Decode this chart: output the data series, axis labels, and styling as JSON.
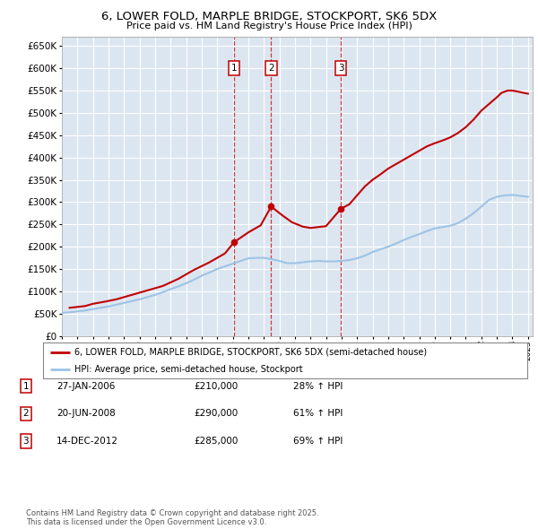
{
  "title": "6, LOWER FOLD, MARPLE BRIDGE, STOCKPORT, SK6 5DX",
  "subtitle": "Price paid vs. HM Land Registry's House Price Index (HPI)",
  "legend_label_red": "6, LOWER FOLD, MARPLE BRIDGE, STOCKPORT, SK6 5DX (semi-detached house)",
  "legend_label_blue": "HPI: Average price, semi-detached house, Stockport",
  "footer": "Contains HM Land Registry data © Crown copyright and database right 2025.\nThis data is licensed under the Open Government Licence v3.0.",
  "transactions": [
    {
      "num": 1,
      "date_label": "27-JAN-2006",
      "price": 210000,
      "hpi_pct": "28% ↑ HPI",
      "date_x": 2006.08
    },
    {
      "num": 2,
      "date_label": "20-JUN-2008",
      "price": 290000,
      "hpi_pct": "61% ↑ HPI",
      "date_x": 2008.47
    },
    {
      "num": 3,
      "date_label": "14-DEC-2012",
      "price": 285000,
      "hpi_pct": "69% ↑ HPI",
      "date_x": 2012.96
    }
  ],
  "ylim": [
    0,
    670000
  ],
  "yticks": [
    0,
    50000,
    100000,
    150000,
    200000,
    250000,
    300000,
    350000,
    400000,
    450000,
    500000,
    550000,
    600000,
    650000
  ],
  "xlim": [
    1995,
    2025.3
  ],
  "plot_bg": "#dce6f1",
  "grid_color": "#ffffff",
  "red_color": "#c00000",
  "blue_color": "#9dc3e6",
  "hpi_line": {
    "years": [
      1995.0,
      1995.5,
      1996.0,
      1996.5,
      1997.0,
      1997.5,
      1998.0,
      1998.5,
      1999.0,
      1999.5,
      2000.0,
      2000.5,
      2001.0,
      2001.5,
      2002.0,
      2002.5,
      2003.0,
      2003.5,
      2004.0,
      2004.5,
      2005.0,
      2005.5,
      2006.0,
      2006.5,
      2007.0,
      2007.5,
      2008.0,
      2008.5,
      2009.0,
      2009.5,
      2010.0,
      2010.5,
      2011.0,
      2011.5,
      2012.0,
      2012.5,
      2013.0,
      2013.5,
      2014.0,
      2014.5,
      2015.0,
      2015.5,
      2016.0,
      2016.5,
      2017.0,
      2017.5,
      2018.0,
      2018.5,
      2019.0,
      2019.5,
      2020.0,
      2020.5,
      2021.0,
      2021.5,
      2022.0,
      2022.5,
      2023.0,
      2023.5,
      2024.0,
      2024.5,
      2025.0
    ],
    "values": [
      52000,
      53000,
      55000,
      57000,
      60000,
      63000,
      66000,
      70000,
      74000,
      78000,
      82000,
      87000,
      92000,
      98000,
      105000,
      111000,
      118000,
      126000,
      135000,
      142000,
      150000,
      156000,
      162000,
      168000,
      174000,
      175000,
      175000,
      172000,
      168000,
      163000,
      163000,
      165000,
      167000,
      168000,
      167000,
      167000,
      168000,
      170000,
      174000,
      180000,
      188000,
      194000,
      200000,
      207000,
      215000,
      222000,
      228000,
      235000,
      241000,
      244000,
      247000,
      253000,
      263000,
      275000,
      290000,
      305000,
      312000,
      315000,
      316000,
      314000,
      312000
    ]
  },
  "price_line": {
    "years": [
      1995.5,
      1996.5,
      1997.0,
      1997.8,
      1998.5,
      1999.5,
      2000.5,
      2001.5,
      2002.5,
      2003.5,
      2004.5,
      2005.5,
      2006.08,
      2007.0,
      2007.8,
      2008.47,
      2009.2,
      2009.8,
      2010.5,
      2011.0,
      2011.5,
      2012.0,
      2012.96,
      2013.5,
      2014.0,
      2014.5,
      2015.0,
      2015.5,
      2016.0,
      2016.5,
      2017.0,
      2017.5,
      2018.0,
      2018.5,
      2019.0,
      2019.5,
      2020.0,
      2020.5,
      2021.0,
      2021.5,
      2022.0,
      2022.5,
      2023.0,
      2023.3,
      2023.7,
      2024.0,
      2024.3,
      2024.7,
      2025.0
    ],
    "values": [
      63000,
      67000,
      72000,
      77000,
      82000,
      92000,
      102000,
      112000,
      128000,
      148000,
      165000,
      185000,
      210000,
      232000,
      248000,
      290000,
      270000,
      255000,
      245000,
      242000,
      244000,
      246000,
      285000,
      295000,
      315000,
      335000,
      350000,
      362000,
      375000,
      385000,
      395000,
      405000,
      415000,
      425000,
      432000,
      438000,
      445000,
      455000,
      468000,
      485000,
      505000,
      520000,
      535000,
      545000,
      550000,
      550000,
      548000,
      545000,
      543000
    ]
  }
}
